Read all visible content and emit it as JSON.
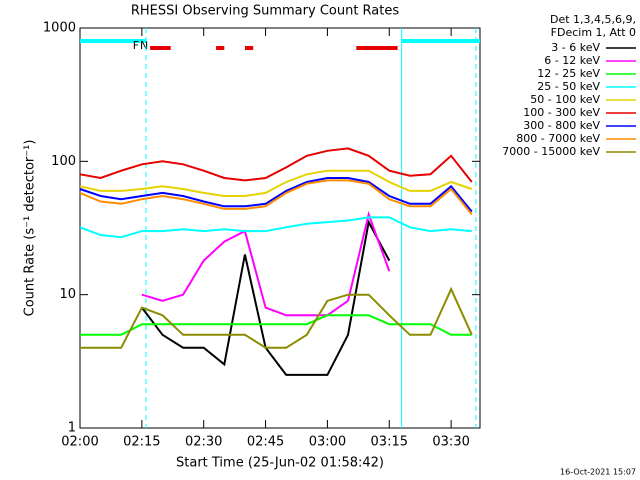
{
  "chart_data": {
    "type": "line",
    "title": "RHESSI Observing Summary Count Rates",
    "x_label": "Start Time (25-Jun-02 01:58:42)",
    "y_label": "Count Rate (s⁻¹ detector⁻¹)",
    "footer": "16-Oct-2021 15:07",
    "legend_header": [
      "Det 1,3,4,5,6,9,",
      "FDecim 1, Att 0"
    ],
    "log_y": true,
    "xlim": [
      "02:00",
      "03:37"
    ],
    "xticks": [
      "02:00",
      "02:15",
      "02:30",
      "02:45",
      "03:00",
      "03:15",
      "03:30"
    ],
    "ylim": [
      1,
      1000
    ],
    "yticks": [
      1,
      10,
      100,
      1000
    ],
    "x": [
      "02:00",
      "02:05",
      "02:10",
      "02:15",
      "02:20",
      "02:25",
      "02:30",
      "02:35",
      "02:40",
      "02:45",
      "02:50",
      "02:55",
      "03:00",
      "03:05",
      "03:10",
      "03:15",
      "03:20",
      "03:25",
      "03:30",
      "03:35"
    ],
    "series": [
      {
        "name": "3 - 6 keV",
        "color": "#000000",
        "values": [
          null,
          null,
          null,
          8,
          5,
          4,
          4,
          3,
          20,
          4,
          2.5,
          2.5,
          2.5,
          5,
          35,
          18,
          null,
          null,
          null,
          null
        ]
      },
      {
        "name": "6 - 12 keV",
        "color": "#ff00ff",
        "values": [
          null,
          null,
          null,
          10,
          9,
          10,
          18,
          25,
          30,
          8,
          7,
          7,
          7,
          9,
          40,
          15,
          null,
          null,
          null,
          null
        ]
      },
      {
        "name": "12 - 25 keV",
        "color": "#00ff00",
        "values": [
          5,
          5,
          5,
          6,
          6,
          6,
          6,
          6,
          6,
          6,
          6,
          6,
          7,
          7,
          7,
          6,
          6,
          6,
          5,
          5
        ]
      },
      {
        "name": "25 - 50 keV",
        "color": "#00ffff",
        "values": [
          32,
          28,
          27,
          30,
          30,
          31,
          30,
          31,
          30,
          30,
          32,
          34,
          35,
          36,
          38,
          38,
          32,
          30,
          31,
          30
        ]
      },
      {
        "name": "50 - 100 keV",
        "color": "#e6d200",
        "values": [
          65,
          60,
          60,
          62,
          65,
          62,
          58,
          55,
          55,
          58,
          70,
          80,
          85,
          85,
          85,
          70,
          60,
          60,
          70,
          62
        ]
      },
      {
        "name": "100 - 300 keV",
        "color": "#e60000",
        "values": [
          80,
          75,
          85,
          95,
          100,
          95,
          85,
          75,
          72,
          75,
          90,
          110,
          120,
          125,
          110,
          85,
          78,
          80,
          110,
          70
        ]
      },
      {
        "name": "300 - 800 keV",
        "color": "#0000ff",
        "values": [
          62,
          55,
          52,
          55,
          58,
          55,
          50,
          46,
          46,
          48,
          60,
          70,
          75,
          75,
          70,
          55,
          48,
          48,
          65,
          42
        ]
      },
      {
        "name": "800 - 7000 keV",
        "color": "#ff8c00",
        "values": [
          58,
          50,
          48,
          52,
          55,
          52,
          48,
          44,
          44,
          46,
          58,
          68,
          72,
          72,
          68,
          52,
          46,
          46,
          62,
          40
        ]
      },
      {
        "name": "7000 - 15000 keV",
        "color": "#8c8c00",
        "values": [
          4,
          4,
          4,
          8,
          7,
          5,
          5,
          5,
          5,
          4,
          4,
          5,
          9,
          10,
          10,
          7,
          5,
          5,
          11,
          5
        ]
      }
    ],
    "flags": [
      {
        "label": "F",
        "time": "02:15",
        "color": "#e60000"
      },
      {
        "label": "N",
        "time": "02:17",
        "color": "#00ffff"
      }
    ],
    "flare_bars": [
      [
        "02:17",
        "02:22"
      ],
      [
        "02:33",
        "02:35"
      ],
      [
        "02:40",
        "02:42"
      ],
      [
        "03:07",
        "03:17"
      ]
    ],
    "night_bars": [
      [
        "02:00",
        "02:16"
      ],
      [
        "03:18",
        "03:37"
      ]
    ],
    "vertical_lines": [
      {
        "time": "02:16",
        "dashed": true
      },
      {
        "time": "03:18",
        "dashed": false
      },
      {
        "time": "03:36",
        "dashed": true
      }
    ]
  }
}
